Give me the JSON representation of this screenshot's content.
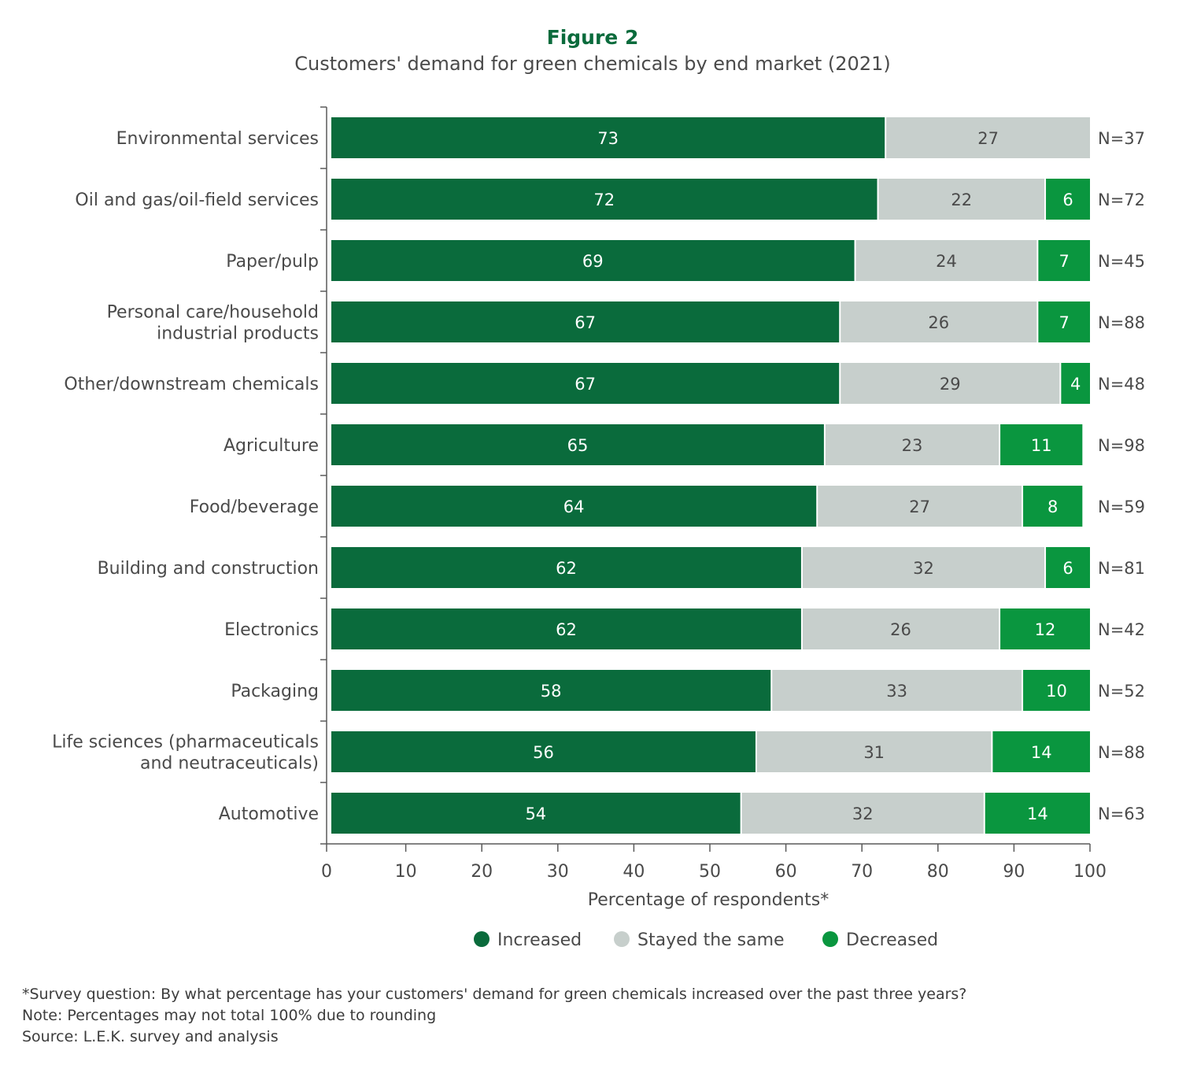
{
  "chart_data": {
    "type": "bar",
    "orientation": "horizontal",
    "stacked": true,
    "figure_label": "Figure 2",
    "title": "Customers' demand for green chemicals by end market (2021)",
    "xlabel": "Percentage of respondents*",
    "ylabel": "",
    "xlim": [
      0,
      100
    ],
    "xticks": [
      0,
      10,
      20,
      30,
      40,
      50,
      60,
      70,
      80,
      90,
      100
    ],
    "grid": false,
    "legend_position": "bottom-center",
    "categories": [
      [
        "Environmental services"
      ],
      [
        "Oil and gas/oil-field services"
      ],
      [
        "Paper/pulp"
      ],
      [
        "Personal care/household",
        "industrial products"
      ],
      [
        "Other/downstream chemicals"
      ],
      [
        "Agriculture"
      ],
      [
        "Food/beverage"
      ],
      [
        "Building and construction"
      ],
      [
        "Electronics"
      ],
      [
        "Packaging"
      ],
      [
        "Life sciences (pharmaceuticals",
        "and neutraceuticals)"
      ],
      [
        "Automotive"
      ]
    ],
    "sample_sizes": [
      "N=37",
      "N=72",
      "N=45",
      "N=88",
      "N=48",
      "N=98",
      "N=59",
      "N=81",
      "N=42",
      "N=52",
      "N=88",
      "N=63"
    ],
    "series": [
      {
        "name": "Increased",
        "color": "#0a6b3c",
        "label_color": "#ffffff",
        "values": [
          73,
          72,
          69,
          67,
          67,
          65,
          64,
          62,
          62,
          58,
          56,
          54
        ]
      },
      {
        "name": "Stayed the same",
        "color": "#c7cfcc",
        "label_color": "#4a4a4a",
        "values": [
          27,
          22,
          24,
          26,
          29,
          23,
          27,
          32,
          26,
          33,
          31,
          32
        ]
      },
      {
        "name": "Decreased",
        "color": "#0a963f",
        "label_color": "#ffffff",
        "values": [
          null,
          6,
          7,
          7,
          4,
          11,
          8,
          6,
          12,
          10,
          14,
          14
        ]
      }
    ]
  },
  "footnotes": {
    "survey": "*Survey question: By what percentage has your customers' demand for green chemicals increased over the past three years?",
    "note": "Note: Percentages may not total 100% due to rounding",
    "source": "Source: L.E.K. survey and analysis"
  },
  "colors": {
    "title": "#0a6b3c",
    "text": "#4a4a4a",
    "axis": "#5a5a5a"
  }
}
